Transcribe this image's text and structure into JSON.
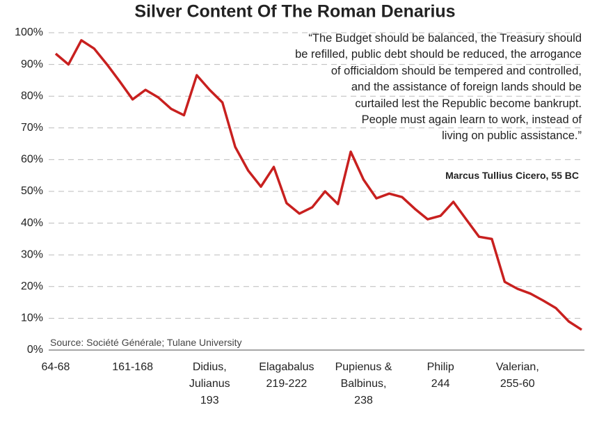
{
  "chart_data": {
    "type": "line",
    "title": "Silver Content Of The Roman Denarius",
    "categories": [
      "64-68",
      null,
      null,
      null,
      null,
      null,
      "161-168",
      null,
      null,
      null,
      null,
      null,
      "Didius,\nJulianus\n193",
      null,
      null,
      null,
      null,
      null,
      "Elagabalus\n219-222",
      null,
      null,
      null,
      null,
      null,
      "Pupienus &\nBalbinus,\n238",
      null,
      null,
      null,
      null,
      null,
      "Philip\n244",
      null,
      null,
      null,
      null,
      null,
      "Valerian,\n255-60",
      null,
      null,
      null,
      null,
      null
    ],
    "values": [
      93.4,
      90,
      97.6,
      95,
      90,
      84.6,
      79,
      82,
      79.6,
      76,
      74,
      86.6,
      82,
      78,
      64,
      56.6,
      51.5,
      57.7,
      46.3,
      43,
      45,
      50,
      46,
      62.5,
      53.7,
      47.8,
      49.3,
      48.2,
      44.5,
      41.2,
      42.3,
      46.7,
      41.2,
      35.7,
      35,
      21.5,
      19.3,
      17.8,
      15.6,
      13.2,
      9,
      6.4
    ],
    "color": "#c8201f",
    "ylim": [
      0,
      100
    ],
    "yticks": [
      {
        "value": 0,
        "label": "0%"
      },
      {
        "value": 10,
        "label": "10%"
      },
      {
        "value": 20,
        "label": "20%"
      },
      {
        "value": 30,
        "label": "30%"
      },
      {
        "value": 40,
        "label": "40%"
      },
      {
        "value": 50,
        "label": "50%"
      },
      {
        "value": 60,
        "label": "60%"
      },
      {
        "value": 70,
        "label": "70%"
      },
      {
        "value": 80,
        "label": "80%"
      },
      {
        "value": 90,
        "label": "90%"
      },
      {
        "value": 100,
        "label": "100%"
      }
    ],
    "grid": true,
    "quote_lines": [
      "“The Budget should be balanced, the Treasury should",
      "be refilled, public debt should be reduced, the arrogance",
      "of officialdom should be tempered and controlled,",
      "and the assistance of foreign lands should be",
      "curtailed lest the Republic become bankrupt.",
      "People must again learn to work, instead of",
      "living on public assistance.”"
    ],
    "attribution": "Marcus Tullius Cicero, 55 BC",
    "source": "Source: Société Générale; Tulane University"
  }
}
